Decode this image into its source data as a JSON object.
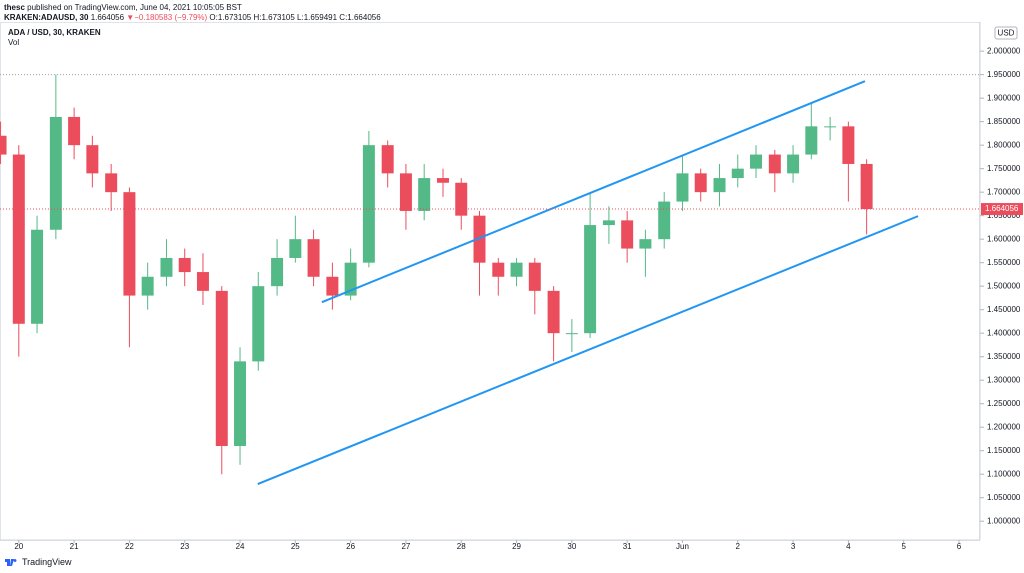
{
  "header": {
    "author": "thesc",
    "published": "published on TradingView.com, June 04, 2021 10:05:05 BST",
    "symbol": "KRAKEN:ADAUSD, 30",
    "price": "1.664056",
    "arrow": "▼",
    "change": "−0.180583 (−9.79%)",
    "ohlc": "O:1.673105 H:1.673105 L:1.659491 C:1.664056"
  },
  "footer": {
    "brand": "TradingView"
  },
  "chart_data": {
    "type": "candlestick",
    "legend": "ADA / USD, 30, KRAKEN",
    "volume_label": "Vol",
    "currency": "USD",
    "up_color": "#53b987",
    "down_color": "#eb4d5c",
    "x": [
      -0.33,
      0,
      0.33,
      0.67,
      1,
      1.33,
      1.67,
      2,
      2.33,
      2.67,
      3,
      3.33,
      3.67,
      4,
      4.33,
      4.67,
      5,
      5.33,
      5.67,
      6,
      6.33,
      6.67,
      7,
      7.33,
      7.67,
      8,
      8.33,
      8.67,
      9,
      9.33,
      9.67,
      10,
      10.33,
      10.67,
      11,
      11.33,
      11.67,
      12,
      12.33,
      12.67,
      13,
      13.33,
      13.67,
      14,
      14.33,
      14.67,
      15,
      15.33
    ],
    "open": [
      1.82,
      1.78,
      1.42,
      1.62,
      1.86,
      1.8,
      1.74,
      1.7,
      1.48,
      1.52,
      1.56,
      1.53,
      1.49,
      1.16,
      1.34,
      1.5,
      1.56,
      1.6,
      1.52,
      1.48,
      1.55,
      1.8,
      1.74,
      1.66,
      1.73,
      1.72,
      1.65,
      1.55,
      1.52,
      1.55,
      1.49,
      1.4,
      1.4,
      1.63,
      1.64,
      1.58,
      1.6,
      1.68,
      1.74,
      1.7,
      1.73,
      1.75,
      1.78,
      1.74,
      1.78,
      1.84,
      1.84,
      1.76
    ],
    "high": [
      1.85,
      1.8,
      1.65,
      1.95,
      1.88,
      1.82,
      1.76,
      1.71,
      1.55,
      1.6,
      1.58,
      1.57,
      1.5,
      1.37,
      1.53,
      1.6,
      1.65,
      1.62,
      1.55,
      1.58,
      1.83,
      1.81,
      1.76,
      1.76,
      1.75,
      1.73,
      1.66,
      1.56,
      1.56,
      1.56,
      1.5,
      1.43,
      1.7,
      1.67,
      1.66,
      1.62,
      1.7,
      1.78,
      1.75,
      1.76,
      1.78,
      1.8,
      1.79,
      1.8,
      1.89,
      1.86,
      1.85,
      1.77
    ],
    "low": [
      1.76,
      1.35,
      1.4,
      1.6,
      1.77,
      1.71,
      1.66,
      1.37,
      1.45,
      1.5,
      1.5,
      1.46,
      1.1,
      1.12,
      1.32,
      1.48,
      1.55,
      1.5,
      1.45,
      1.47,
      1.54,
      1.71,
      1.62,
      1.64,
      1.69,
      1.62,
      1.48,
      1.48,
      1.5,
      1.44,
      1.34,
      1.36,
      1.39,
      1.59,
      1.55,
      1.52,
      1.58,
      1.66,
      1.68,
      1.67,
      1.71,
      1.73,
      1.7,
      1.72,
      1.77,
      1.81,
      1.68,
      1.61
    ],
    "close": [
      1.78,
      1.42,
      1.62,
      1.86,
      1.8,
      1.74,
      1.7,
      1.48,
      1.52,
      1.56,
      1.53,
      1.49,
      1.16,
      1.34,
      1.5,
      1.56,
      1.6,
      1.52,
      1.48,
      1.55,
      1.8,
      1.74,
      1.66,
      1.73,
      1.72,
      1.65,
      1.55,
      1.52,
      1.55,
      1.49,
      1.4,
      1.4,
      1.63,
      1.64,
      1.58,
      1.6,
      1.68,
      1.74,
      1.7,
      1.73,
      1.75,
      1.78,
      1.74,
      1.78,
      1.84,
      1.84,
      1.76,
      1.664
    ],
    "last_price": 1.664056,
    "h_lines": [
      {
        "value": 1.95,
        "color": "#9e9e9e"
      }
    ],
    "trend_lines": [
      {
        "x": [
          5.48,
          15.3
        ],
        "y": [
          1.466,
          1.936
        ]
      },
      {
        "x": [
          4.32,
          16.26
        ],
        "y": [
          1.079,
          1.649
        ]
      }
    ],
    "trend_color": "#2196f3",
    "xlim": [
      -0.34,
      17.38
    ],
    "ylim": [
      0.96,
      2.062
    ],
    "xticks": [
      {
        "value": 0,
        "label": "20"
      },
      {
        "value": 1,
        "label": "21"
      },
      {
        "value": 2,
        "label": "22"
      },
      {
        "value": 3,
        "label": "23"
      },
      {
        "value": 4,
        "label": "24"
      },
      {
        "value": 5,
        "label": "25"
      },
      {
        "value": 6,
        "label": "26"
      },
      {
        "value": 7,
        "label": "27"
      },
      {
        "value": 8,
        "label": "28"
      },
      {
        "value": 9,
        "label": "29"
      },
      {
        "value": 10,
        "label": "30"
      },
      {
        "value": 11,
        "label": "31"
      },
      {
        "value": 12,
        "label": "Jun"
      },
      {
        "value": 13,
        "label": "2"
      },
      {
        "value": 14,
        "label": "3"
      },
      {
        "value": 15,
        "label": "4"
      },
      {
        "value": 16,
        "label": "5"
      },
      {
        "value": 17,
        "label": "6"
      }
    ],
    "yticks": [
      {
        "value": 1.0,
        "label": "1.000000"
      },
      {
        "value": 1.05,
        "label": "1.050000"
      },
      {
        "value": 1.1,
        "label": "1.100000"
      },
      {
        "value": 1.15,
        "label": "1.150000"
      },
      {
        "value": 1.2,
        "label": "1.200000"
      },
      {
        "value": 1.25,
        "label": "1.250000"
      },
      {
        "value": 1.3,
        "label": "1.300000"
      },
      {
        "value": 1.35,
        "label": "1.350000"
      },
      {
        "value": 1.4,
        "label": "1.400000"
      },
      {
        "value": 1.45,
        "label": "1.450000"
      },
      {
        "value": 1.5,
        "label": "1.500000"
      },
      {
        "value": 1.55,
        "label": "1.550000"
      },
      {
        "value": 1.6,
        "label": "1.600000"
      },
      {
        "value": 1.65,
        "label": "1.650000"
      },
      {
        "value": 1.7,
        "label": "1.700000"
      },
      {
        "value": 1.75,
        "label": "1.750000"
      },
      {
        "value": 1.8,
        "label": "1.800000"
      },
      {
        "value": 1.85,
        "label": "1.850000"
      },
      {
        "value": 1.9,
        "label": "1.900000"
      },
      {
        "value": 1.95,
        "label": "1.950000"
      },
      {
        "value": 2.0,
        "label": "2.000000"
      }
    ]
  }
}
